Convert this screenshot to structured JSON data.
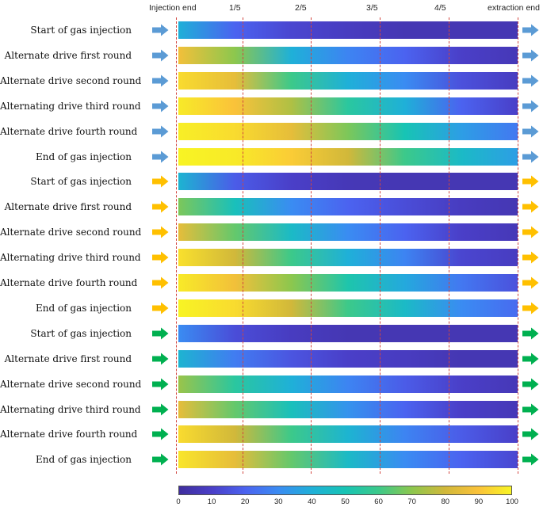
{
  "header": {
    "injection_end": "Injection end",
    "extraction_end": "extraction end",
    "fifths": [
      "1/5",
      "2/5",
      "3/5",
      "4/5"
    ]
  },
  "colorbar": {
    "ticks": [
      "0",
      "10",
      "20",
      "30",
      "40",
      "50",
      "60",
      "70",
      "80",
      "90",
      "100"
    ],
    "min": 0,
    "max": 100,
    "colors": [
      "#3f2e9e",
      "#4a3fc8",
      "#4b63f0",
      "#3a8cf2",
      "#1fb0d8",
      "#17c4b4",
      "#3cc98a",
      "#8cc74e",
      "#d1b83a",
      "#fac23a",
      "#f8f424"
    ]
  },
  "groups": [
    {
      "color": "#5b9bd5",
      "rows": [
        {
          "label": "Start of gas injection",
          "profile": [
            40,
            20,
            12,
            8,
            5,
            5,
            5
          ]
        },
        {
          "label": "Alternate drive first round",
          "profile": [
            88,
            70,
            40,
            28,
            20,
            10,
            6
          ]
        },
        {
          "label": "Alternate drive second round",
          "profile": [
            95,
            85,
            60,
            40,
            30,
            15,
            8
          ]
        },
        {
          "label": "Alternating drive third round",
          "profile": [
            98,
            90,
            75,
            55,
            40,
            20,
            10
          ]
        },
        {
          "label": "Alternate drive fourth round",
          "profile": [
            99,
            95,
            85,
            68,
            50,
            35,
            25
          ]
        },
        {
          "label": "End of gas injection",
          "profile": [
            100,
            98,
            92,
            80,
            60,
            45,
            35
          ]
        }
      ]
    },
    {
      "color": "#ffc000",
      "rows": [
        {
          "label": "Start of gas injection",
          "profile": [
            42,
            18,
            10,
            6,
            5,
            5,
            5
          ]
        },
        {
          "label": "Alternate drive first round",
          "profile": [
            68,
            48,
            30,
            20,
            14,
            8,
            5
          ]
        },
        {
          "label": "Alternate drive second round",
          "profile": [
            85,
            65,
            45,
            30,
            20,
            10,
            6
          ]
        },
        {
          "label": "Alternating drive third round",
          "profile": [
            96,
            80,
            60,
            40,
            28,
            12,
            8
          ]
        },
        {
          "label": "Alternate drive fourth round",
          "profile": [
            98,
            88,
            70,
            52,
            38,
            25,
            15
          ]
        },
        {
          "label": "End of gas injection",
          "profile": [
            100,
            95,
            80,
            60,
            45,
            30,
            22
          ]
        }
      ]
    },
    {
      "color": "#00b050",
      "rows": [
        {
          "label": "Start of gas injection",
          "profile": [
            30,
            14,
            8,
            5,
            5,
            5,
            5
          ]
        },
        {
          "label": "Alternate drive first round",
          "profile": [
            42,
            26,
            16,
            10,
            8,
            5,
            5
          ]
        },
        {
          "label": "Alternate drive second round",
          "profile": [
            72,
            55,
            40,
            28,
            18,
            10,
            6
          ]
        },
        {
          "label": "Alternating drive third round",
          "profile": [
            85,
            65,
            48,
            32,
            20,
            10,
            6
          ]
        },
        {
          "label": "Alternate drive fourth round",
          "profile": [
            95,
            80,
            60,
            42,
            28,
            18,
            10
          ]
        },
        {
          "label": "End of gas injection",
          "profile": [
            97,
            85,
            65,
            45,
            30,
            20,
            12
          ]
        }
      ]
    }
  ]
}
